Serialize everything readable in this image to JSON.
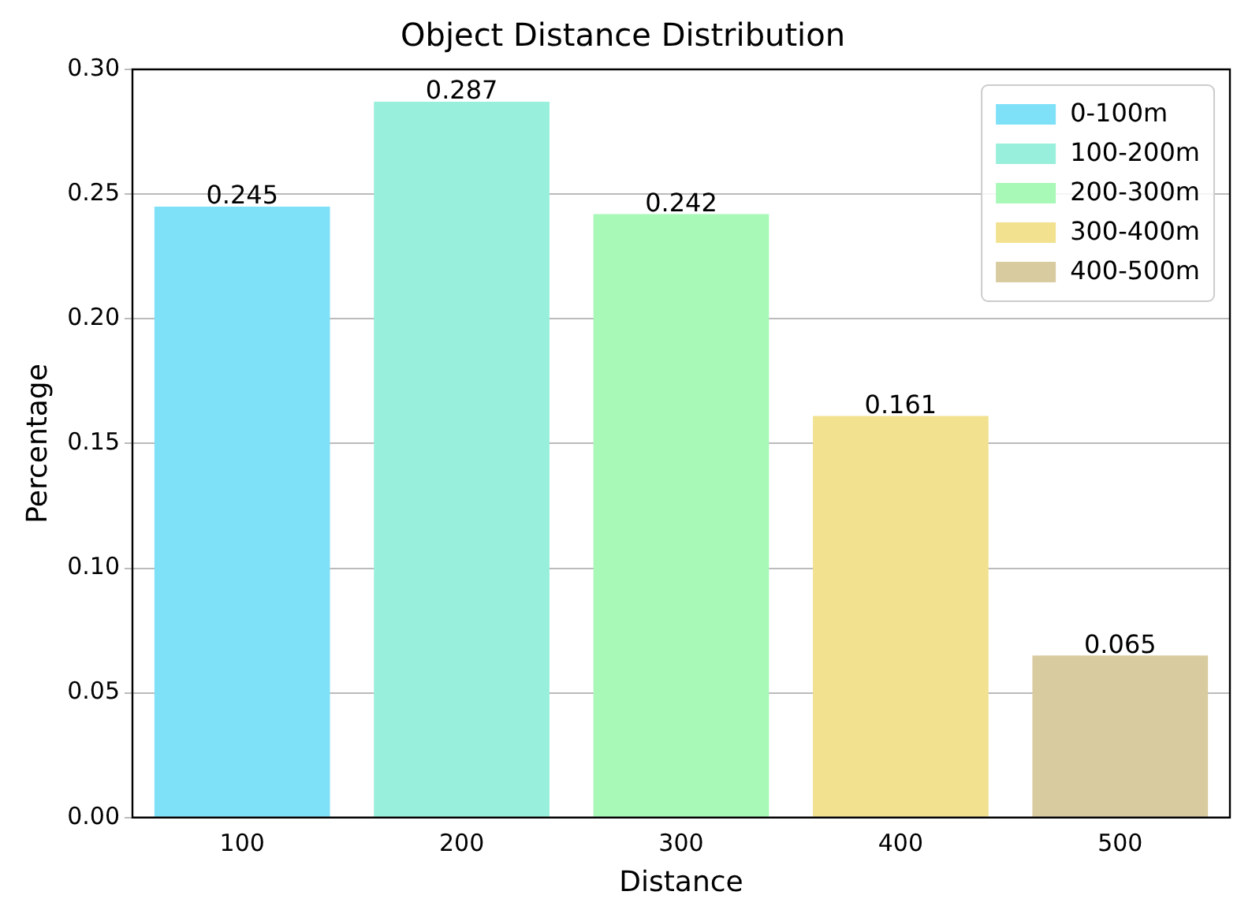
{
  "chart_data": {
    "type": "bar",
    "title": "Object Distance Distribution",
    "xlabel": "Distance",
    "ylabel": "Percentage",
    "categories": [
      "100",
      "200",
      "300",
      "400",
      "500"
    ],
    "series": [
      {
        "name": "0-100m",
        "color": "#7fe1f8",
        "values": [
          0.245,
          null,
          null,
          null,
          null
        ]
      },
      {
        "name": "100-200m",
        "color": "#98f0dc",
        "values": [
          null,
          0.287,
          null,
          null,
          null
        ]
      },
      {
        "name": "200-300m",
        "color": "#a8f8b8",
        "values": [
          null,
          null,
          0.242,
          null,
          null
        ]
      },
      {
        "name": "300-400m",
        "color": "#f2e290",
        "values": [
          null,
          null,
          null,
          0.161,
          null
        ]
      },
      {
        "name": "400-500m",
        "color": "#d8cba0",
        "values": [
          null,
          null,
          null,
          null,
          0.065
        ]
      }
    ],
    "ylim": [
      0,
      0.3
    ],
    "yticks": [
      {
        "value": 0,
        "label": "0.00"
      },
      {
        "value": 0.05,
        "label": "0.05"
      },
      {
        "value": 0.1,
        "label": "0.10"
      },
      {
        "value": 0.15,
        "label": "0.15"
      },
      {
        "value": 0.2,
        "label": "0.20"
      },
      {
        "value": 0.25,
        "label": "0.25"
      },
      {
        "value": 0.3,
        "label": "0.30"
      }
    ],
    "grid": "y",
    "legend": "top right",
    "data_labels": true
  }
}
